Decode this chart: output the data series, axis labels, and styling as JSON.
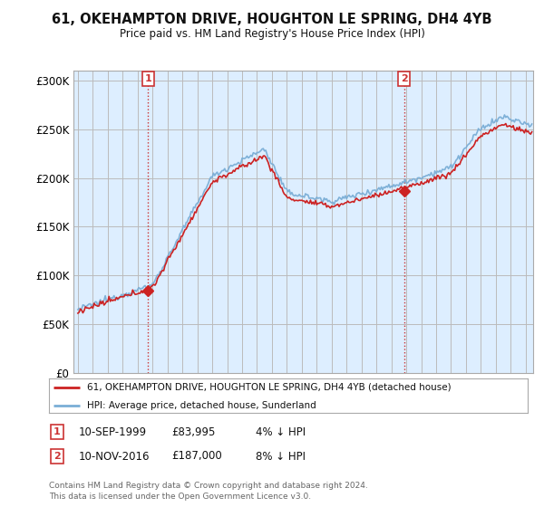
{
  "title": "61, OKEHAMPTON DRIVE, HOUGHTON LE SPRING, DH4 4YB",
  "subtitle": "Price paid vs. HM Land Registry's House Price Index (HPI)",
  "hpi_color": "#7aaed6",
  "price_color": "#cc2222",
  "dashed_line_color": "#cc3333",
  "background_color": "#ffffff",
  "plot_bg_color": "#ddeeff",
  "grid_color": "#bbbbbb",
  "ylabel_ticks": [
    "£0",
    "£50K",
    "£100K",
    "£150K",
    "£200K",
    "£250K",
    "£300K"
  ],
  "ytick_values": [
    0,
    50000,
    100000,
    150000,
    200000,
    250000,
    300000
  ],
  "ylim": [
    0,
    310000
  ],
  "xlim_left": 1994.7,
  "xlim_right": 2025.5,
  "sale1_date_x": 1999.7,
  "sale1_price": 83995,
  "sale1_label": "1",
  "sale2_date_x": 2016.85,
  "sale2_price": 187000,
  "sale2_label": "2",
  "legend_line1": "61, OKEHAMPTON DRIVE, HOUGHTON LE SPRING, DH4 4YB (detached house)",
  "legend_line2": "HPI: Average price, detached house, Sunderland",
  "annotation1_date": "10-SEP-1999",
  "annotation1_price": "£83,995",
  "annotation1_hpi": "4% ↓ HPI",
  "annotation2_date": "10-NOV-2016",
  "annotation2_price": "£187,000",
  "annotation2_hpi": "8% ↓ HPI",
  "footer": "Contains HM Land Registry data © Crown copyright and database right 2024.\nThis data is licensed under the Open Government Licence v3.0."
}
